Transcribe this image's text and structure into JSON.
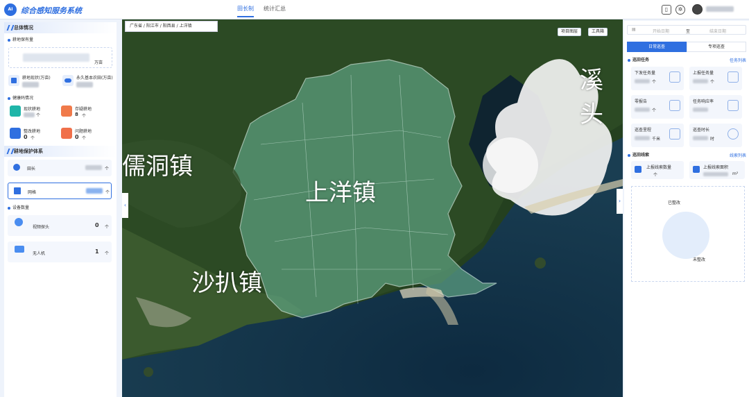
{
  "app": {
    "logo_text": "AI",
    "title": "综合感知服务系统"
  },
  "nav": {
    "tabs": [
      {
        "label": "田长制",
        "active": true
      },
      {
        "label": "统计汇总",
        "active": false
      }
    ]
  },
  "left": {
    "overview_title": "总体情况",
    "farmland_title": "耕地保有量",
    "farmland_unit": "万亩",
    "farmland_area_label": "耕地现状(万亩)",
    "basic_farmland_label": "永久基本农田(万亩)",
    "health_title": "健康码情况",
    "health": [
      {
        "label": "现状耕地",
        "value": ""
      },
      {
        "label": "存疑耕地",
        "value": "8"
      },
      {
        "label": "整改耕地",
        "value": "0"
      },
      {
        "label": "问题耕地",
        "value": "0"
      }
    ],
    "unit_ge": "个",
    "protect_title": "耕地保护体系",
    "protect": [
      {
        "label": "田长"
      },
      {
        "label": "网格"
      }
    ],
    "device_title": "设备数量",
    "devices": [
      {
        "label": "视频探头",
        "value": "0"
      },
      {
        "label": "无人机",
        "value": "1"
      }
    ]
  },
  "map": {
    "breadcrumb": "广东省 / 阳江市 / 阳西县 / 上洋镇",
    "btn_project": "项目图层",
    "btn_tools": "工具箱",
    "labels": {
      "center": "上洋镇",
      "west": "儒洞镇",
      "southwest": "沙扒镇",
      "northeast": "溪头"
    }
  },
  "right": {
    "date_start": "开始日期",
    "date_sep": "至",
    "date_end": "结束日期",
    "tabs": [
      {
        "label": "日常巡查",
        "active": true
      },
      {
        "label": "专项巡查",
        "active": false
      }
    ],
    "task_title": "巡田任务",
    "task_link": "任务列表",
    "tasks": [
      {
        "label": "下发任务量",
        "unit": "个"
      },
      {
        "label": "上报任务量",
        "unit": "个"
      },
      {
        "label": "零报告",
        "unit": "个"
      },
      {
        "label": "任务响应率",
        "unit": ""
      },
      {
        "label": "巡查里程",
        "unit": "千米"
      },
      {
        "label": "巡查时长",
        "unit": "时"
      }
    ],
    "clue_title": "巡田线索",
    "clue_link": "线索列表",
    "clues": [
      {
        "label": "上报线索数量",
        "unit": "个"
      },
      {
        "label": "上报线索面积",
        "unit": "m²"
      }
    ],
    "pie_labels": {
      "top": "已整改",
      "bottom": "未整改"
    }
  },
  "colors": {
    "accent": "#2f6fe0",
    "teal": "#1fb5a8",
    "orange": "#f07a4a"
  }
}
